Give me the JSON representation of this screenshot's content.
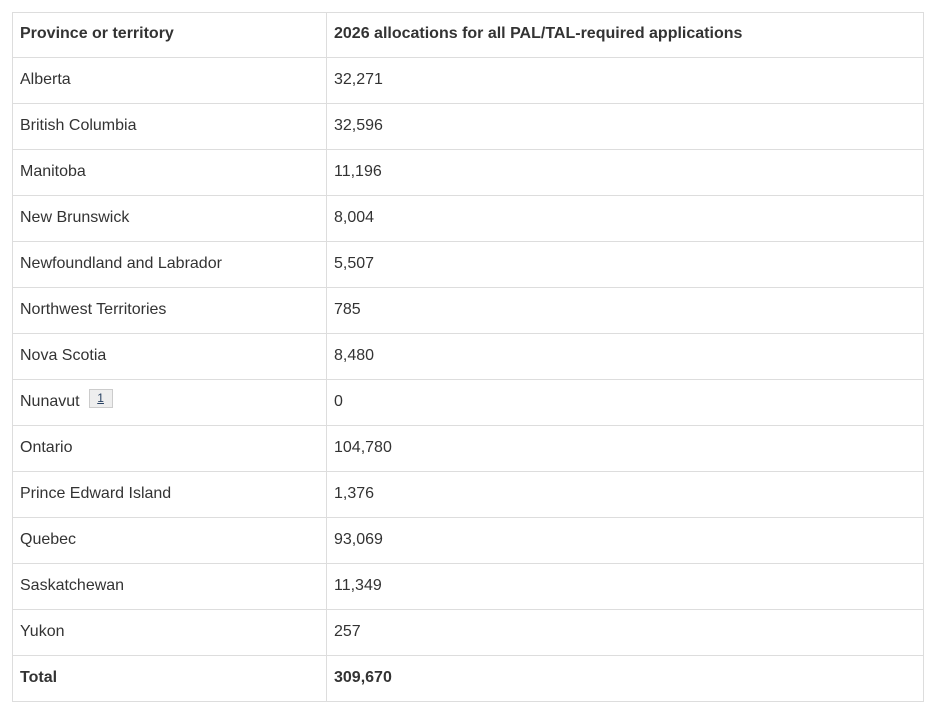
{
  "table": {
    "headers": [
      "Province or territory",
      "2026 allocations for all PAL/TAL-required applications"
    ],
    "rows": [
      {
        "province": "Alberta",
        "value": "32,271"
      },
      {
        "province": "British Columbia",
        "value": "32,596"
      },
      {
        "province": "Manitoba",
        "value": "11,196"
      },
      {
        "province": "New Brunswick",
        "value": "8,004"
      },
      {
        "province": "Newfoundland and Labrador",
        "value": "5,507"
      },
      {
        "province": "Northwest Territories",
        "value": "785"
      },
      {
        "province": "Nova Scotia",
        "value": "8,480"
      },
      {
        "province": "Nunavut",
        "value": "0",
        "footnote": "1"
      },
      {
        "province": "Ontario",
        "value": "104,780"
      },
      {
        "province": "Prince Edward Island",
        "value": "1,376"
      },
      {
        "province": "Quebec",
        "value": "93,069"
      },
      {
        "province": "Saskatchewan",
        "value": "11,349"
      },
      {
        "province": "Yukon",
        "value": "257"
      }
    ],
    "total_row": {
      "label": "Total",
      "value": "309,670"
    }
  },
  "colors": {
    "border": "#dddddd",
    "text": "#333333",
    "footnote_link": "#284162",
    "footnote_bg": "#eeeeee",
    "footnote_border": "#cccccc"
  }
}
